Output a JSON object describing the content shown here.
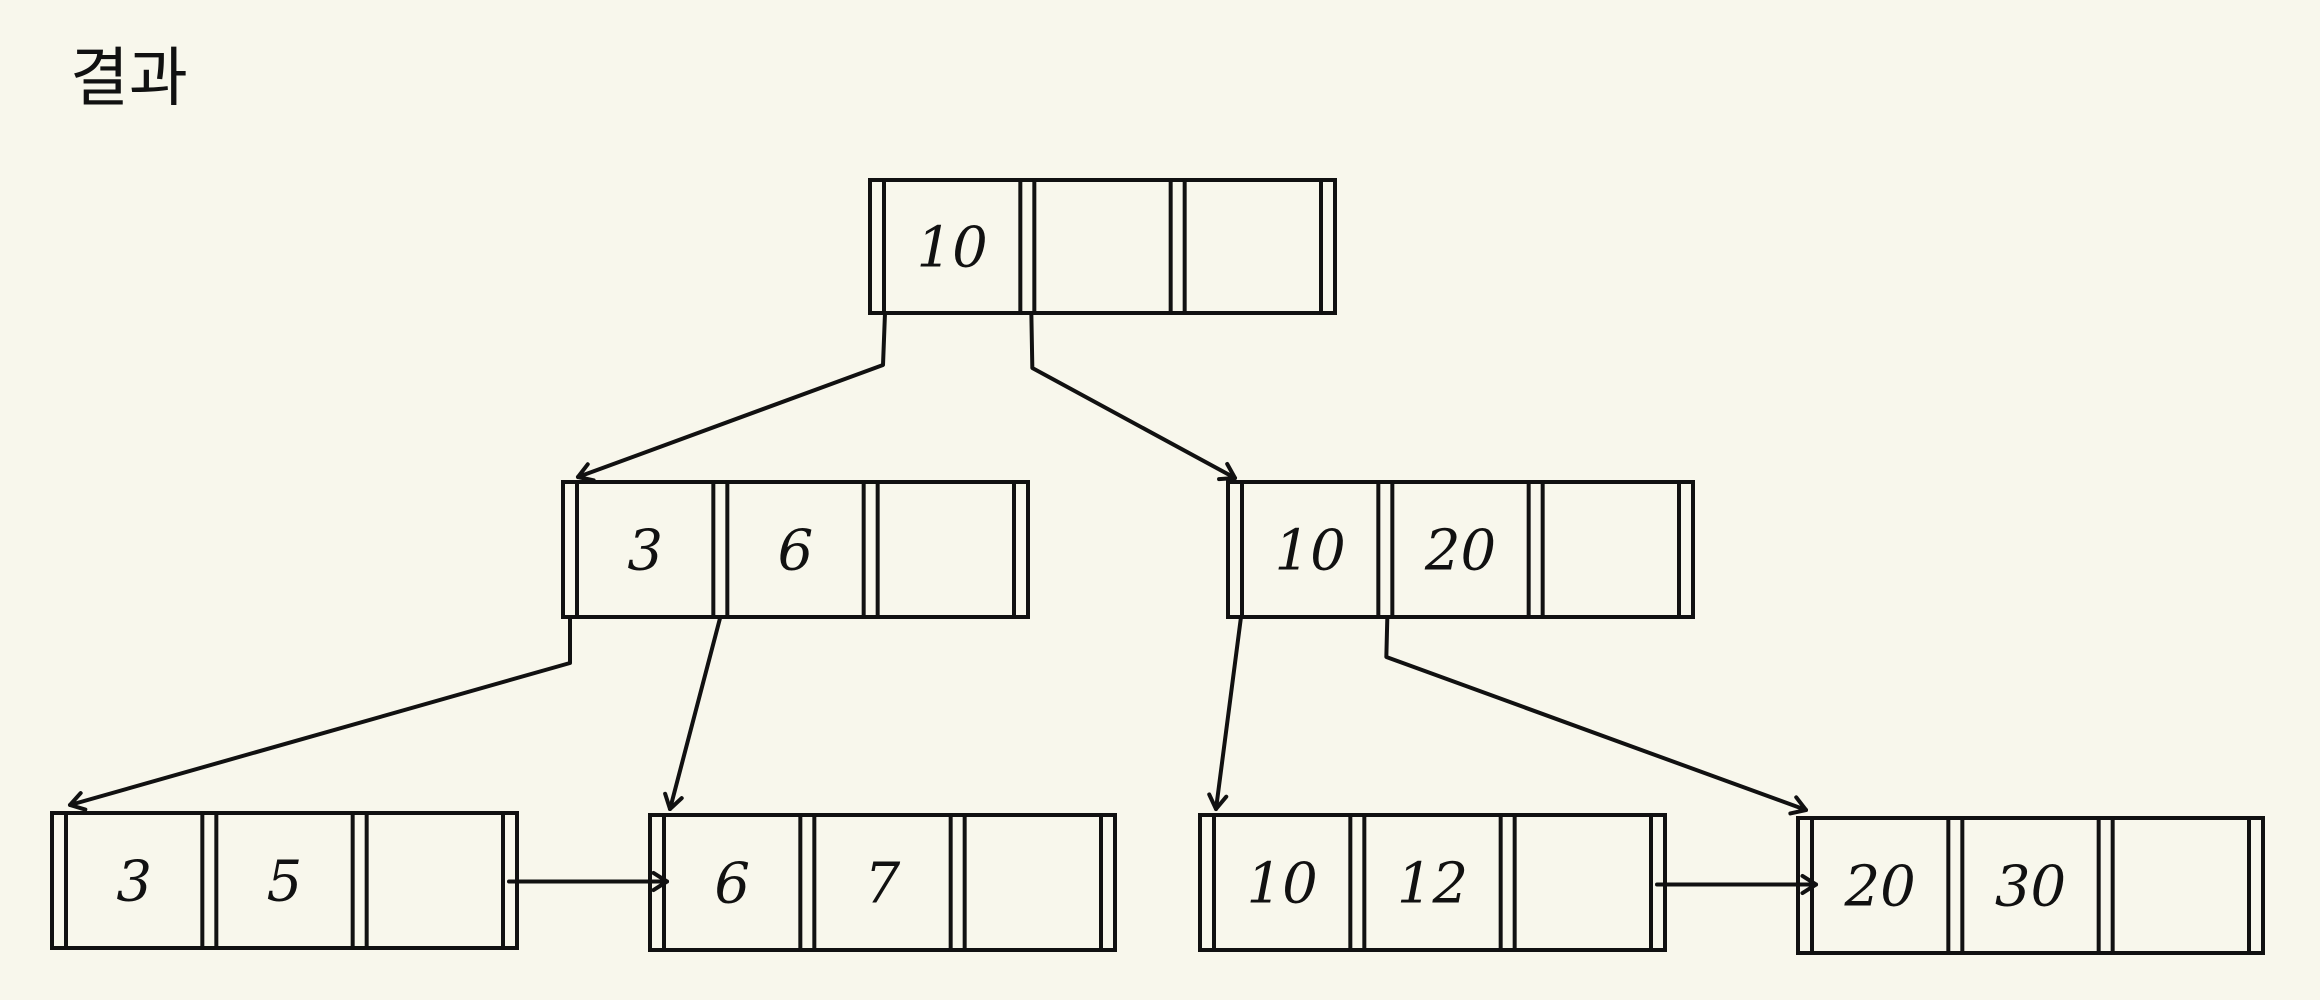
{
  "title": "결과",
  "tree": {
    "root": {
      "keys": [
        "10",
        "",
        ""
      ]
    },
    "internal": [
      {
        "keys": [
          "3",
          "6",
          ""
        ]
      },
      {
        "keys": [
          "10",
          "20",
          ""
        ]
      }
    ],
    "leaves": [
      {
        "keys": [
          "3",
          "5",
          ""
        ]
      },
      {
        "keys": [
          "6",
          "7",
          ""
        ]
      },
      {
        "keys": [
          "10",
          "12",
          ""
        ]
      },
      {
        "keys": [
          "20",
          "30",
          ""
        ]
      }
    ]
  },
  "colors": {
    "background": "#f8f7ec",
    "ink": "#111111"
  }
}
